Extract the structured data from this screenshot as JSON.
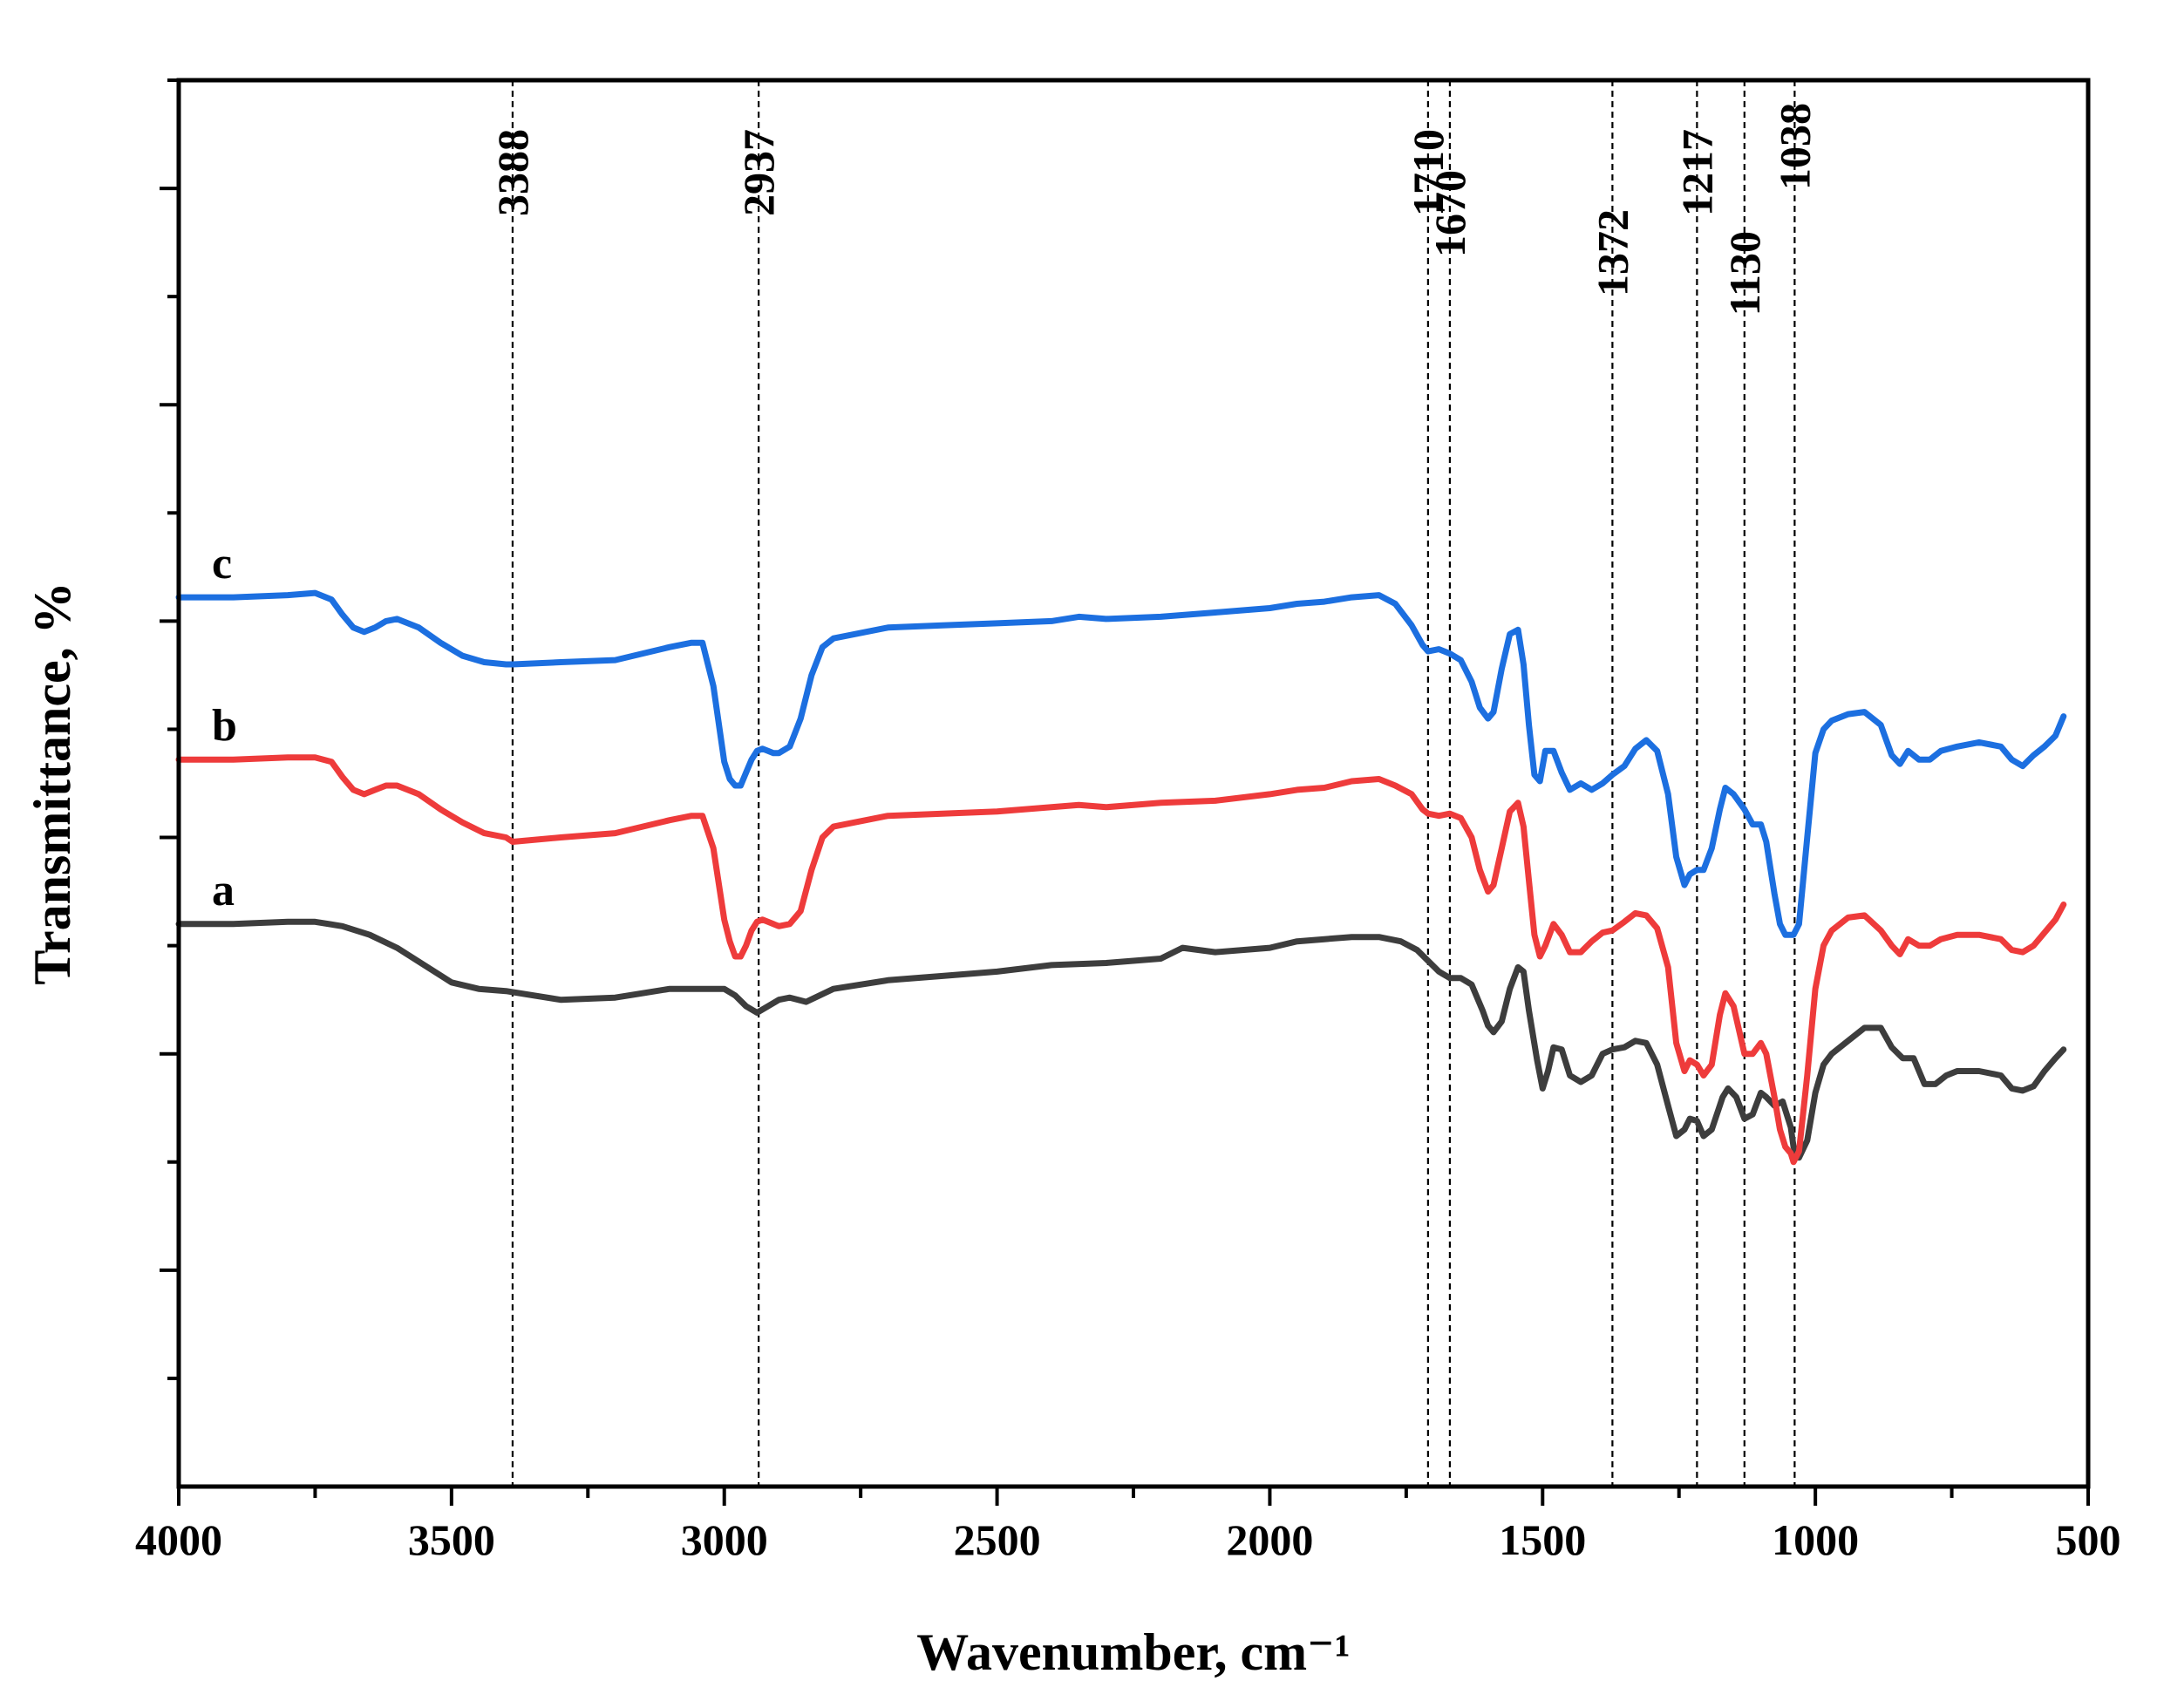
{
  "chart_data": {
    "type": "line",
    "xlabel": "Wavenumber, cm⁻¹",
    "ylabel": "Transmittance, %",
    "xlim": [
      4000,
      500
    ],
    "x_reversed": true,
    "x_ticks": [
      4000,
      3500,
      3000,
      2500,
      2000,
      1500,
      1000,
      500
    ],
    "y_tick_labels": "none",
    "y_major_tick_count": 7,
    "legend": "none",
    "grid": false,
    "reference_lines": [
      {
        "x": 3388,
        "label": "3388"
      },
      {
        "x": 2937,
        "label": "2937"
      },
      {
        "x": 1710,
        "label": "1710"
      },
      {
        "x": 1670,
        "label": "1670"
      },
      {
        "x": 1372,
        "label": "1372"
      },
      {
        "x": 1217,
        "label": "1217"
      },
      {
        "x": 1130,
        "label": "1130"
      },
      {
        "x": 1038,
        "label": "1038"
      }
    ],
    "series": [
      {
        "name": "a",
        "color": "#3d3d3d",
        "x": [
          4000,
          3900,
          3800,
          3750,
          3700,
          3650,
          3600,
          3550,
          3500,
          3450,
          3400,
          3300,
          3200,
          3100,
          3000,
          2980,
          2960,
          2940,
          2920,
          2900,
          2880,
          2850,
          2800,
          2700,
          2600,
          2500,
          2400,
          2300,
          2200,
          2160,
          2100,
          2000,
          1950,
          1900,
          1850,
          1800,
          1760,
          1730,
          1710,
          1690,
          1670,
          1650,
          1630,
          1610,
          1600,
          1590,
          1575,
          1560,
          1545,
          1535,
          1525,
          1510,
          1500,
          1490,
          1480,
          1465,
          1450,
          1430,
          1410,
          1390,
          1372,
          1350,
          1330,
          1310,
          1290,
          1270,
          1255,
          1240,
          1230,
          1217,
          1205,
          1190,
          1170,
          1160,
          1145,
          1130,
          1115,
          1100,
          1090,
          1075,
          1060,
          1045,
          1040,
          1030,
          1015,
          1000,
          985,
          970,
          940,
          910,
          880,
          860,
          840,
          820,
          800,
          780,
          760,
          740,
          700,
          660,
          640,
          620,
          600,
          580,
          560,
          545
        ],
        "y": [
          2.6,
          2.6,
          2.61,
          2.61,
          2.59,
          2.55,
          2.49,
          2.41,
          2.33,
          2.3,
          2.29,
          2.25,
          2.26,
          2.3,
          2.3,
          2.27,
          2.22,
          2.19,
          2.22,
          2.25,
          2.26,
          2.24,
          2.3,
          2.34,
          2.36,
          2.38,
          2.41,
          2.42,
          2.44,
          2.49,
          2.47,
          2.49,
          2.52,
          2.53,
          2.54,
          2.54,
          2.52,
          2.48,
          2.43,
          2.38,
          2.35,
          2.35,
          2.32,
          2.2,
          2.13,
          2.1,
          2.15,
          2.3,
          2.4,
          2.38,
          2.2,
          1.97,
          1.84,
          1.92,
          2.03,
          2.02,
          1.9,
          1.87,
          1.9,
          2.0,
          2.02,
          2.03,
          2.06,
          2.05,
          1.95,
          1.76,
          1.62,
          1.65,
          1.7,
          1.69,
          1.62,
          1.65,
          1.8,
          1.84,
          1.8,
          1.7,
          1.72,
          1.82,
          1.8,
          1.76,
          1.78,
          1.66,
          1.57,
          1.52,
          1.6,
          1.82,
          1.95,
          2.0,
          2.06,
          2.12,
          2.12,
          2.03,
          1.98,
          1.98,
          1.86,
          1.86,
          1.9,
          1.92,
          1.92,
          1.9,
          1.84,
          1.83,
          1.85,
          1.92,
          1.98,
          2.02
        ]
      },
      {
        "name": "b",
        "color": "#ee3b3b",
        "x": [
          4000,
          3900,
          3800,
          3750,
          3720,
          3700,
          3680,
          3660,
          3640,
          3620,
          3600,
          3560,
          3520,
          3480,
          3440,
          3400,
          3388,
          3300,
          3200,
          3100,
          3060,
          3040,
          3020,
          3000,
          2990,
          2980,
          2970,
          2960,
          2950,
          2940,
          2930,
          2920,
          2910,
          2900,
          2880,
          2860,
          2840,
          2820,
          2800,
          2700,
          2600,
          2500,
          2400,
          2350,
          2300,
          2200,
          2100,
          2000,
          1950,
          1900,
          1850,
          1800,
          1770,
          1740,
          1720,
          1710,
          1690,
          1670,
          1650,
          1630,
          1615,
          1600,
          1590,
          1575,
          1560,
          1545,
          1535,
          1525,
          1515,
          1505,
          1495,
          1480,
          1465,
          1450,
          1430,
          1410,
          1390,
          1372,
          1350,
          1330,
          1310,
          1290,
          1270,
          1255,
          1240,
          1230,
          1217,
          1205,
          1190,
          1175,
          1165,
          1150,
          1130,
          1115,
          1100,
          1090,
          1075,
          1065,
          1055,
          1045,
          1040,
          1030,
          1015,
          1000,
          985,
          970,
          940,
          910,
          880,
          860,
          845,
          830,
          810,
          790,
          770,
          740,
          700,
          660,
          640,
          620,
          600,
          580,
          560,
          545
        ],
        "y": [
          3.36,
          3.36,
          3.37,
          3.37,
          3.35,
          3.28,
          3.22,
          3.2,
          3.22,
          3.24,
          3.24,
          3.2,
          3.13,
          3.07,
          3.02,
          3.0,
          2.98,
          3.0,
          3.02,
          3.08,
          3.1,
          3.1,
          2.95,
          2.62,
          2.52,
          2.45,
          2.45,
          2.5,
          2.57,
          2.61,
          2.62,
          2.61,
          2.6,
          2.59,
          2.6,
          2.66,
          2.85,
          3.0,
          3.05,
          3.1,
          3.11,
          3.12,
          3.14,
          3.15,
          3.14,
          3.16,
          3.17,
          3.2,
          3.22,
          3.23,
          3.26,
          3.27,
          3.24,
          3.2,
          3.13,
          3.11,
          3.1,
          3.11,
          3.09,
          3.0,
          2.85,
          2.75,
          2.78,
          2.95,
          3.12,
          3.16,
          3.05,
          2.8,
          2.55,
          2.45,
          2.5,
          2.6,
          2.55,
          2.47,
          2.47,
          2.52,
          2.56,
          2.57,
          2.61,
          2.65,
          2.64,
          2.58,
          2.4,
          2.05,
          1.92,
          1.97,
          1.95,
          1.9,
          1.95,
          2.18,
          2.28,
          2.22,
          2.0,
          2.0,
          2.05,
          2.0,
          1.8,
          1.65,
          1.57,
          1.54,
          1.5,
          1.55,
          1.9,
          2.3,
          2.5,
          2.57,
          2.63,
          2.64,
          2.57,
          2.5,
          2.46,
          2.53,
          2.5,
          2.5,
          2.53,
          2.55,
          2.55,
          2.53,
          2.48,
          2.47,
          2.5,
          2.56,
          2.62,
          2.69
        ]
      },
      {
        "name": "c",
        "color": "#1c6fe0",
        "x": [
          4000,
          3900,
          3800,
          3750,
          3720,
          3700,
          3680,
          3660,
          3640,
          3620,
          3600,
          3560,
          3520,
          3480,
          3440,
          3400,
          3388,
          3300,
          3200,
          3100,
          3060,
          3040,
          3020,
          3000,
          2990,
          2980,
          2970,
          2960,
          2950,
          2940,
          2930,
          2920,
          2910,
          2900,
          2880,
          2860,
          2840,
          2820,
          2800,
          2700,
          2600,
          2500,
          2400,
          2350,
          2300,
          2200,
          2100,
          2000,
          1950,
          1900,
          1850,
          1800,
          1770,
          1740,
          1720,
          1710,
          1690,
          1670,
          1650,
          1630,
          1615,
          1600,
          1590,
          1575,
          1560,
          1545,
          1535,
          1525,
          1515,
          1505,
          1495,
          1480,
          1465,
          1450,
          1430,
          1410,
          1390,
          1372,
          1350,
          1330,
          1310,
          1290,
          1270,
          1255,
          1240,
          1230,
          1217,
          1205,
          1190,
          1175,
          1165,
          1150,
          1130,
          1115,
          1100,
          1090,
          1075,
          1065,
          1055,
          1045,
          1040,
          1030,
          1015,
          1000,
          985,
          970,
          940,
          910,
          880,
          860,
          845,
          830,
          810,
          790,
          770,
          740,
          700,
          660,
          640,
          620,
          600,
          580,
          560,
          545
        ],
        "y": [
          4.11,
          4.11,
          4.12,
          4.13,
          4.1,
          4.03,
          3.97,
          3.95,
          3.97,
          4.0,
          4.01,
          3.97,
          3.9,
          3.84,
          3.81,
          3.8,
          3.8,
          3.81,
          3.82,
          3.88,
          3.9,
          3.9,
          3.7,
          3.35,
          3.27,
          3.24,
          3.24,
          3.3,
          3.36,
          3.4,
          3.41,
          3.4,
          3.39,
          3.39,
          3.42,
          3.55,
          3.75,
          3.88,
          3.92,
          3.97,
          3.98,
          3.99,
          4.0,
          4.02,
          4.01,
          4.02,
          4.04,
          4.06,
          4.08,
          4.09,
          4.11,
          4.12,
          4.08,
          3.98,
          3.89,
          3.86,
          3.87,
          3.85,
          3.82,
          3.72,
          3.6,
          3.55,
          3.58,
          3.78,
          3.94,
          3.96,
          3.8,
          3.52,
          3.29,
          3.26,
          3.4,
          3.4,
          3.3,
          3.22,
          3.25,
          3.22,
          3.25,
          3.29,
          3.33,
          3.41,
          3.45,
          3.4,
          3.2,
          2.91,
          2.78,
          2.83,
          2.85,
          2.85,
          2.95,
          3.13,
          3.23,
          3.2,
          3.13,
          3.06,
          3.06,
          2.98,
          2.74,
          2.6,
          2.55,
          2.55,
          2.55,
          2.6,
          3.0,
          3.39,
          3.5,
          3.54,
          3.57,
          3.58,
          3.52,
          3.38,
          3.34,
          3.4,
          3.36,
          3.36,
          3.4,
          3.42,
          3.44,
          3.42,
          3.36,
          3.33,
          3.38,
          3.42,
          3.47,
          3.56
        ]
      }
    ]
  }
}
